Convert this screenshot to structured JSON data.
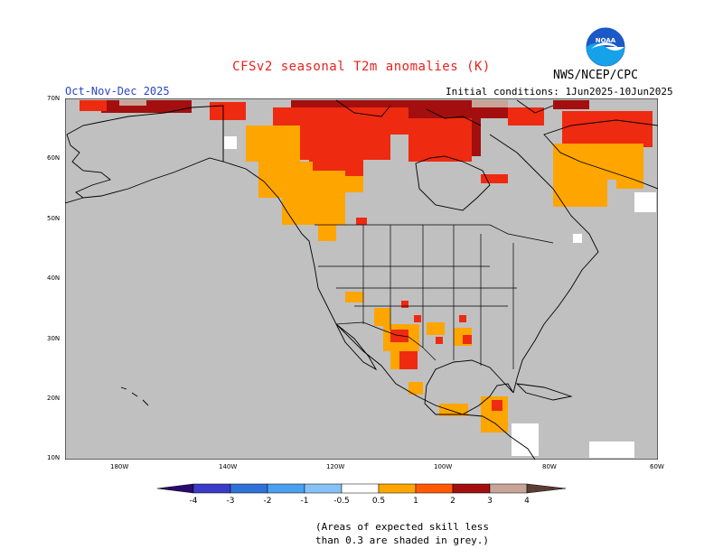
{
  "header": {
    "title": "CFSv2 seasonal T2m anomalies (K)",
    "agency": "NWS/NCEP/CPC",
    "season": "Oct-Nov-Dec 2025",
    "initial_conditions": "Initial conditions: 1Jun2025-10Jun2025",
    "logo_text": "NOAA"
  },
  "map": {
    "background_color": "#c0c0c0",
    "lat_labels": [
      "70N",
      "60N",
      "50N",
      "40N",
      "30N",
      "20N",
      "10N"
    ],
    "lon_labels": [
      "180W",
      "140W",
      "120W",
      "100W",
      "80W",
      "60W"
    ]
  },
  "legend": {
    "labels": [
      "-4",
      "-3",
      "-2",
      "-1",
      "-0.5",
      "0.5",
      "1",
      "2",
      "3",
      "4"
    ],
    "colors": {
      "lt_-4": "#2a0a6e",
      "-4_-3": "#3b3bc8",
      "-3_-2": "#2f73d8",
      "-2_-1": "#4aa0ee",
      "-1_-0.5": "#86c2f6",
      "-0.5_0.5": "#ffffff",
      "0.5_1": "#ffa500",
      "1_2": "#ff5a00",
      "2_3": "#ee2a10",
      "3_4": "#a30f0f",
      "4_5": "#c8a398",
      "gt_5": "#5a3e36"
    }
  },
  "footnote": {
    "line1": "(Areas of expected skill less",
    "line2": "than 0.3 are shaded in grey.)"
  }
}
